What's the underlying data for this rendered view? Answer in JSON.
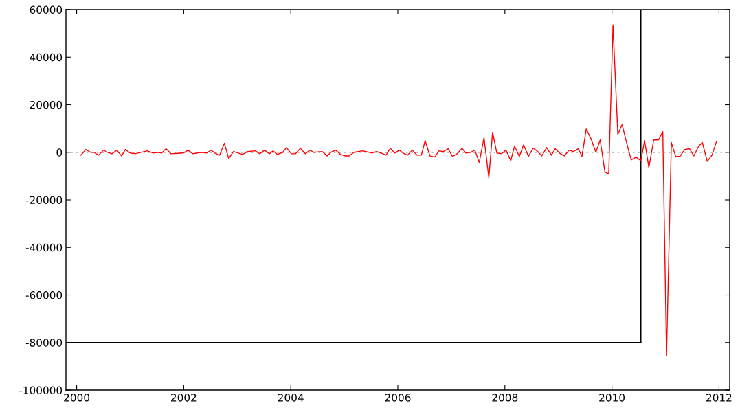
{
  "chart_data": {
    "type": "line",
    "series": [
      {
        "color": "#ff0000",
        "x": [
          2000.08,
          2000.17,
          2000.26,
          2000.32,
          2000.41,
          2000.5,
          2000.58,
          2000.66,
          2000.75,
          2000.84,
          2000.91,
          2001.0,
          2001.09,
          2001.32,
          2001.43,
          2001.52,
          2001.59,
          2001.67,
          2001.76,
          2001.99,
          2002.08,
          2002.17,
          2002.33,
          2002.43,
          2002.51,
          2002.58,
          2002.67,
          2002.76,
          2002.84,
          2002.93,
          2003.1,
          2003.19,
          2003.34,
          2003.42,
          2003.51,
          2003.6,
          2003.67,
          2003.75,
          2003.85,
          2003.92,
          2004.01,
          2004.09,
          2004.18,
          2004.27,
          2004.36,
          2004.43,
          2004.59,
          2004.68,
          2004.75,
          2004.84,
          2004.93,
          2005.01,
          2005.09,
          2005.18,
          2005.34,
          2005.52,
          2005.6,
          2005.69,
          2005.78,
          2005.86,
          2005.94,
          2006.03,
          2006.1,
          2006.18,
          2006.27,
          2006.36,
          2006.44,
          2006.51,
          2006.6,
          2006.69,
          2006.77,
          2006.85,
          2006.94,
          2007.02,
          2007.11,
          2007.2,
          2007.27,
          2007.36,
          2007.44,
          2007.52,
          2007.61,
          2007.7,
          2007.77,
          2007.85,
          2007.94,
          2008.02,
          2008.11,
          2008.18,
          2008.27,
          2008.35,
          2008.44,
          2008.53,
          2008.61,
          2008.69,
          2008.78,
          2008.87,
          2008.94,
          2009.02,
          2009.11,
          2009.2,
          2009.28,
          2009.37,
          2009.44,
          2009.52,
          2009.61,
          2009.7,
          2009.78,
          2009.87,
          2009.94,
          2010.02,
          2010.11,
          2010.19,
          2010.28,
          2010.36,
          2010.45,
          2010.54,
          2010.61,
          2010.69,
          2010.78,
          2010.87,
          2010.95,
          2011.02,
          2011.11,
          2011.19,
          2011.27,
          2011.36,
          2011.45,
          2011.53,
          2011.62,
          2011.69,
          2011.78,
          2011.87,
          2011.95
        ],
        "values": [
          -1200,
          1200,
          0,
          0,
          -1200,
          900,
          0,
          -600,
          900,
          -1500,
          1200,
          -300,
          -600,
          600,
          -300,
          0,
          -300,
          1500,
          -600,
          -300,
          900,
          -600,
          0,
          -300,
          900,
          -300,
          -1200,
          3800,
          -2600,
          300,
          -900,
          300,
          600,
          -600,
          900,
          -600,
          600,
          -900,
          0,
          2000,
          -600,
          -600,
          1700,
          -600,
          900,
          0,
          300,
          -1500,
          0,
          900,
          -900,
          -1500,
          -1500,
          0,
          600,
          -300,
          300,
          -300,
          -1200,
          1700,
          -300,
          900,
          -300,
          -1200,
          900,
          -1200,
          -1200,
          4900,
          -1500,
          -2000,
          600,
          300,
          1500,
          -1700,
          -600,
          1700,
          -300,
          0,
          900,
          -4300,
          6100,
          -10700,
          8400,
          -300,
          -600,
          900,
          -3500,
          2600,
          -1700,
          3200,
          -1700,
          1800,
          400,
          -1500,
          2000,
          -1200,
          1500,
          -300,
          -1500,
          900,
          300,
          1500,
          -1700,
          9800,
          5600,
          0,
          5200,
          -8400,
          -9000,
          53600,
          7500,
          11600,
          3500,
          -3200,
          -2000,
          -3500,
          4900,
          -6400,
          5200,
          5200,
          8700,
          -85600,
          4100,
          -1700,
          -1700,
          1200,
          1500,
          -1500,
          2600,
          4100,
          -3800,
          -1200,
          4400
        ]
      }
    ],
    "xlim": [
      1999.8,
      2012.2
    ],
    "xticks": [
      2000,
      2002,
      2004,
      2006,
      2008,
      2010,
      2012
    ],
    "ylim": [
      -100000,
      60000
    ],
    "yticks": [
      -100000,
      -80000,
      -60000,
      -40000,
      -20000,
      0,
      20000,
      40000,
      60000
    ],
    "ref_lines": [
      {
        "axis": "y",
        "value": 0,
        "color": "#000000",
        "line_style": "dotted"
      },
      {
        "axis": "x",
        "value": 2010.54,
        "color": "#000000",
        "line_style": "solid"
      },
      {
        "axis": "y",
        "value": -80000,
        "color": "#000000",
        "line_style": "solid"
      }
    ],
    "grid": false,
    "legend": false
  }
}
